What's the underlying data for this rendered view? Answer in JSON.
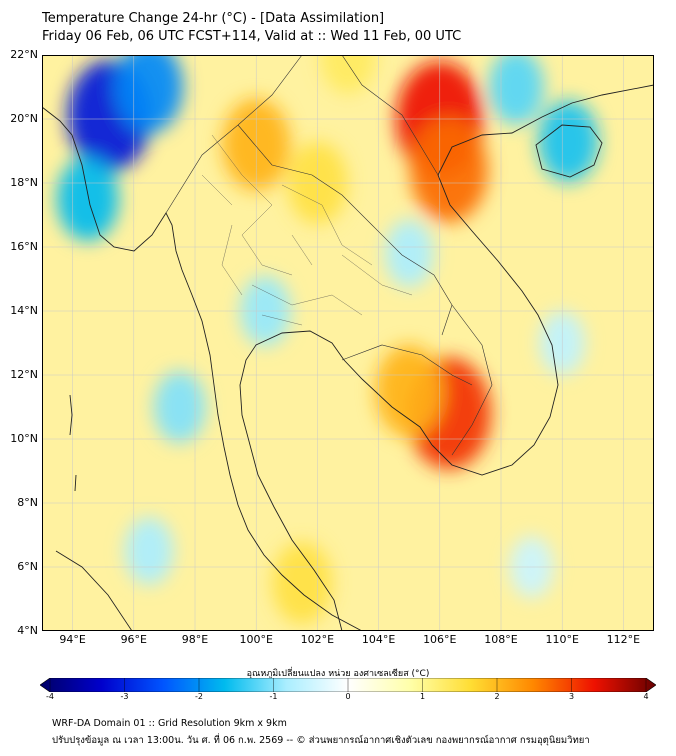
{
  "header": {
    "title_line1": "Temperature Change 24-hr (°C) - [Data Assimilation]",
    "title_line2": "Friday 06 Feb, 06 UTC FCST+114, Valid at :: Wed 11 Feb, 00 UTC"
  },
  "map": {
    "lat_range": [
      4,
      22
    ],
    "lon_range": [
      93,
      113
    ],
    "lat_labels": [
      "22°N",
      "20°N",
      "18°N",
      "16°N",
      "14°N",
      "12°N",
      "10°N",
      "8°N",
      "6°N",
      "4°N"
    ],
    "lon_labels": [
      "94°E",
      "96°E",
      "98°E",
      "100°E",
      "102°E",
      "104°E",
      "106°E",
      "108°E",
      "110°E",
      "112°E"
    ],
    "anomalies": [
      {
        "name": "cold-core-myanmar-north",
        "lon": 95.2,
        "lat": 20.1,
        "value": -3.0
      },
      {
        "name": "cold-myanmar-west",
        "lon": 94.5,
        "lat": 17.5,
        "value": -1.6
      },
      {
        "name": "cold-myanmar-central",
        "lon": 96.5,
        "lat": 21.0,
        "value": -2.0
      },
      {
        "name": "cold-hainan",
        "lon": 110.2,
        "lat": 19.3,
        "value": -1.5
      },
      {
        "name": "cold-gulf-tonkin",
        "lon": 108.5,
        "lat": 21.0,
        "value": -1.2
      },
      {
        "name": "cold-central-thailand",
        "lon": 100.3,
        "lat": 14.0,
        "value": -0.9
      },
      {
        "name": "cold-cambodia-north",
        "lon": 105.0,
        "lat": 15.8,
        "value": -0.8
      },
      {
        "name": "cold-andaman",
        "lon": 97.5,
        "lat": 11.0,
        "value": -1.0
      },
      {
        "name": "cold-sumatra-north",
        "lon": 96.5,
        "lat": 6.5,
        "value": -0.8
      },
      {
        "name": "cold-scs",
        "lon": 110.0,
        "lat": 13.0,
        "value": -0.6
      },
      {
        "name": "cold-scs-south",
        "lon": 109.0,
        "lat": 6.0,
        "value": -0.5
      },
      {
        "name": "warm-vietnam-north",
        "lon": 106.0,
        "lat": 20.0,
        "value": 3.2
      },
      {
        "name": "warm-vietnam-north-2",
        "lon": 106.3,
        "lat": 18.4,
        "value": 2.6
      },
      {
        "name": "warm-mekong-delta",
        "lon": 106.3,
        "lat": 10.8,
        "value": 3.0
      },
      {
        "name": "warm-cambodia-south",
        "lon": 105.0,
        "lat": 11.5,
        "value": 2.0
      },
      {
        "name": "warm-north-thailand",
        "lon": 100.0,
        "lat": 19.2,
        "value": 2.0
      },
      {
        "name": "warm-laos",
        "lon": 102.0,
        "lat": 18.0,
        "value": 1.5
      },
      {
        "name": "warm-malay-peninsula",
        "lon": 101.5,
        "lat": 5.5,
        "value": 1.5
      },
      {
        "name": "warm-yunnan",
        "lon": 103.0,
        "lat": 22.0,
        "value": 1.3
      }
    ]
  },
  "colorbar": {
    "title": "อุณหภูมิเปลี่ยนแปลง หน่วย องศาเซลเซียส (°C)",
    "min": -4,
    "max": 4,
    "tick_labels": [
      "-4",
      "-3",
      "-2",
      "-1",
      "0",
      "1",
      "2",
      "3",
      "4"
    ],
    "colors": [
      "#000066",
      "#0000cc",
      "#0055ff",
      "#00bbee",
      "#aaeeff",
      "#ffffff",
      "#ffffaa",
      "#ffdd33",
      "#ff8800",
      "#ee1100",
      "#660000"
    ]
  },
  "footer": {
    "line1": "WRF-DA Domain 01 :: Grid Resolution 9km x 9km",
    "line2": "ปรับปรุงข้อมูล ณ เวลา 13:00น. วัน ศ. ที่ 06 ก.พ. 2569 -- © ส่วนพยากรณ์อากาศเชิงตัวเลข กองพยากรณ์อากาศ กรมอุตุนิยมวิทยา"
  },
  "colors": {
    "base_field": "#fff2a0",
    "coastline": "#222222",
    "gridline": "#c8c8c8"
  }
}
